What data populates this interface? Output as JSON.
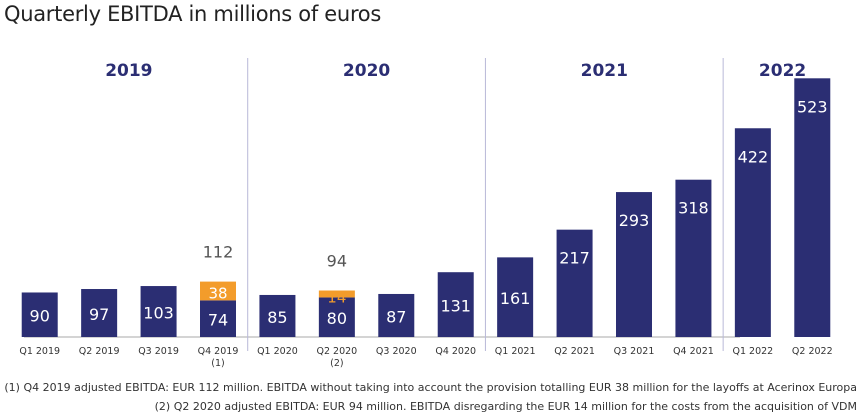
{
  "title": "Quarterly EBITDA in millions of euros",
  "chart_data": {
    "type": "bar",
    "stacked": true,
    "categories": [
      "Q1 2019",
      "Q2 2019",
      "Q3 2019",
      "Q4 2019",
      "Q1 2020",
      "Q2 2020",
      "Q3 2020",
      "Q4 2020",
      "Q1 2021",
      "Q2 2021",
      "Q3 2021",
      "Q4 2021",
      "Q1 2022",
      "Q2 2022"
    ],
    "category_notes": [
      "",
      "",
      "",
      "(1)",
      "",
      "(2)",
      "",
      "",
      "",
      "",
      "",
      "",
      "",
      ""
    ],
    "series": [
      {
        "color": "#2b2e73",
        "values": [
          90,
          97,
          103,
          74,
          85,
          80,
          87,
          131,
          161,
          217,
          293,
          318,
          422,
          523
        ]
      },
      {
        "color": "#f39c2b",
        "values": [
          null,
          null,
          null,
          38,
          null,
          14,
          null,
          null,
          null,
          null,
          null,
          null,
          null,
          null
        ]
      }
    ],
    "totals": [
      null,
      null,
      null,
      112,
      null,
      94,
      null,
      null,
      null,
      null,
      null,
      null,
      null,
      null
    ],
    "year_groups": [
      {
        "label": "2019",
        "from": 0,
        "to": 3
      },
      {
        "label": "2020",
        "from": 4,
        "to": 7
      },
      {
        "label": "2021",
        "from": 8,
        "to": 11
      },
      {
        "label": "2022",
        "from": 12,
        "to": 13
      }
    ],
    "ylim": [
      0,
      560
    ],
    "grid": false,
    "legend": "none"
  },
  "footnotes": [
    "(1) Q4 2019 adjusted EBITDA: EUR 112 million. EBITDA without taking into account the provision totalling EUR 38 million for the layoffs at Acerinox Europa",
    "(2) Q2 2020 adjusted EBITDA: EUR 94 million. EBITDA disregarding the EUR 14 million for the costs from the acquisition of VDM"
  ],
  "colors": {
    "bar": "#2b2e73",
    "highlight": "#f39c2b",
    "divider": "#b8b8d8",
    "axis": "#aaaaaa",
    "total_label": "#555555"
  }
}
